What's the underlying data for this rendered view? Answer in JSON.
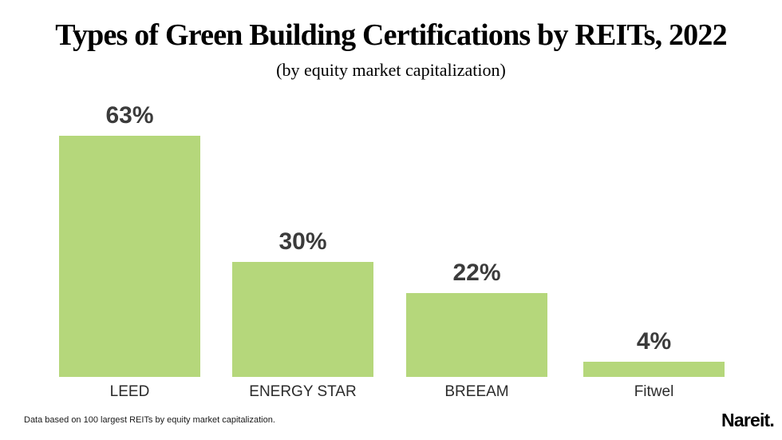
{
  "header": {
    "title": "Types of Green Building Certifications by REITs, 2022",
    "subtitle": "(by equity market capitalization)"
  },
  "footer": {
    "footnote": "Data based on 100 largest REITs by equity market capitalization.",
    "logo_text": "Nareit."
  },
  "colors": {
    "bar": "#b5d77b",
    "value_label": "#3b3b3b",
    "category_label": "#2b2b2b"
  },
  "chart_data": {
    "type": "bar",
    "title": "Types of Green Building Certifications by REITs, 2022",
    "subtitle": "(by equity market capitalization)",
    "categories": [
      "LEED",
      "ENERGY STAR",
      "BREEAM",
      "Fitwel"
    ],
    "values": [
      63,
      30,
      22,
      4
    ],
    "value_labels": [
      "63%",
      "30%",
      "22%",
      "4%"
    ],
    "xlabel": "",
    "ylabel": "",
    "ylim": [
      0,
      66
    ],
    "grid": false,
    "legend": false,
    "axes_visible": false,
    "bar_color": "#b5d77b"
  }
}
